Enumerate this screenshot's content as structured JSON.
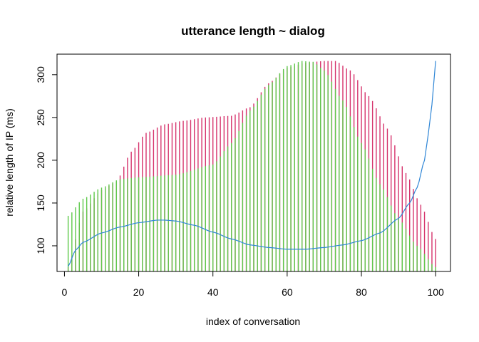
{
  "chart_data": {
    "type": "line",
    "title": "utterance length ~ dialog",
    "xlabel": "index of conversation",
    "ylabel": "relative length of IP (ms)",
    "xlim": [
      -2,
      104
    ],
    "ylim": [
      70,
      324
    ],
    "x_ticks": [
      0,
      20,
      40,
      60,
      80,
      100
    ],
    "y_ticks": [
      100,
      150,
      200,
      250,
      300
    ],
    "colors": {
      "red_series": "#d6336c",
      "green_series": "#5ec94a",
      "blue_series": "#2f86d6"
    },
    "x_range": [
      1,
      100
    ],
    "series": [
      {
        "style": "vertical-lines",
        "color_key": "red_series",
        "x": [
          1,
          5,
          10,
          14,
          18,
          22,
          27,
          32,
          38,
          45,
          50,
          55,
          60,
          65,
          70,
          73,
          77,
          82,
          87,
          92,
          96,
          100
        ],
        "y": [
          75,
          140,
          165,
          175,
          210,
          232,
          242,
          246,
          250,
          252,
          262,
          290,
          308,
          314,
          316,
          316,
          305,
          275,
          237,
          185,
          148,
          108
        ]
      },
      {
        "style": "vertical-lines",
        "color_key": "green_series",
        "x": [
          1,
          5,
          10,
          15,
          20,
          30,
          40,
          45,
          50,
          55,
          60,
          64,
          67,
          70,
          75,
          80,
          85,
          90,
          95,
          100
        ],
        "y": [
          135,
          155,
          168,
          178,
          180,
          183,
          195,
          220,
          258,
          288,
          310,
          316,
          315,
          305,
          270,
          220,
          172,
          132,
          100,
          75
        ]
      },
      {
        "style": "line",
        "color_key": "blue_series",
        "x": [
          1,
          3,
          5,
          10,
          15,
          20,
          25,
          27,
          30,
          35,
          40,
          45,
          50,
          55,
          60,
          63,
          65,
          70,
          75,
          80,
          85,
          90,
          93,
          95,
          97,
          98,
          99,
          100
        ],
        "y": [
          76,
          95,
          104,
          115,
          122,
          127,
          130,
          130,
          129,
          124,
          116,
          108,
          101,
          98,
          96,
          96,
          96,
          98,
          101,
          106,
          115,
          132,
          150,
          168,
          200,
          230,
          265,
          316
        ]
      }
    ]
  }
}
